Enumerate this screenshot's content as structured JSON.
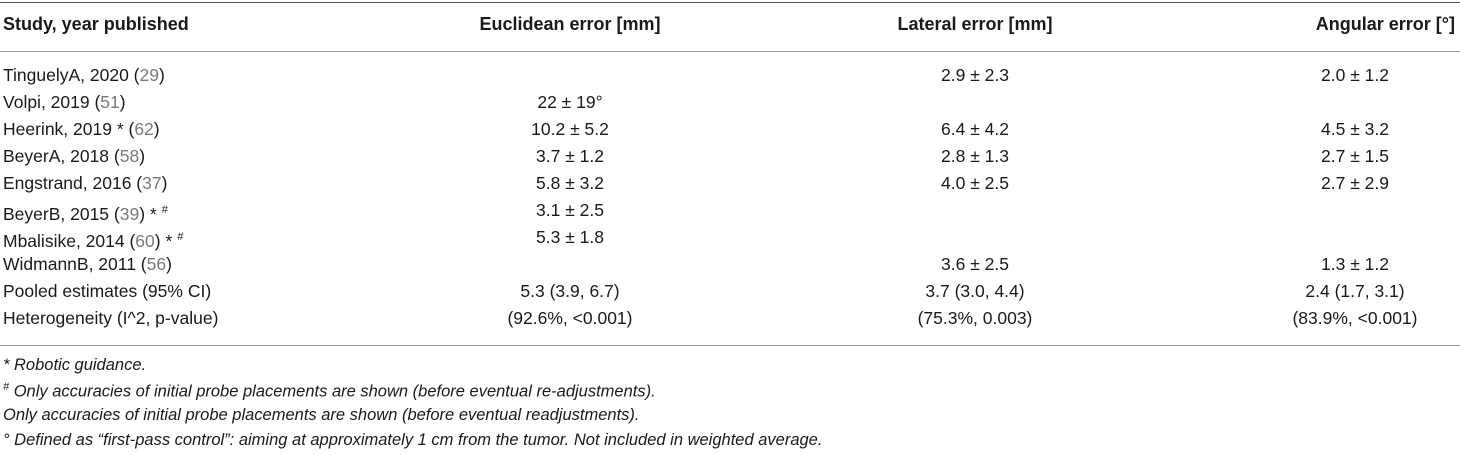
{
  "headers": {
    "study": "Study, year published",
    "euclidean": "Euclidean error [mm]",
    "lateral": "Lateral error [mm]",
    "angular": "Angular error [°]"
  },
  "rows": [
    {
      "study": "TinguelyA, 2020 (",
      "ref": "29",
      "suffix": ")",
      "euclidean": "",
      "lateral": "2.9 ± 2.3",
      "angular": "2.0 ± 1.2"
    },
    {
      "study": "Volpi, 2019 (",
      "ref": "51",
      "suffix": ")",
      "euclidean": "22 ± 19°",
      "lateral": "",
      "angular": ""
    },
    {
      "study": "Heerink, 2019 * (",
      "ref": "62",
      "suffix": ")",
      "euclidean": "10.2 ± 5.2",
      "lateral": "6.4 ± 4.2",
      "angular": "4.5 ± 3.2"
    },
    {
      "study": "BeyerA, 2018 (",
      "ref": "58",
      "suffix": ")",
      "euclidean": "3.7 ± 1.2",
      "lateral": "2.8 ± 1.3",
      "angular": "2.7 ± 1.5"
    },
    {
      "study": "Engstrand, 2016 (",
      "ref": "37",
      "suffix": ")",
      "euclidean": "5.8 ± 3.2",
      "lateral": "4.0 ± 2.5",
      "angular": "2.7 ± 2.9"
    },
    {
      "study": "BeyerB, 2015 (",
      "ref": "39",
      "suffix": ") * ",
      "sup": "#",
      "euclidean": "3.1 ± 2.5",
      "lateral": "",
      "angular": ""
    },
    {
      "study": "Mbalisike, 2014 (",
      "ref": "60",
      "suffix": ") * ",
      "sup": "#",
      "euclidean": "5.3 ± 1.8",
      "lateral": "",
      "angular": ""
    },
    {
      "study": "WidmannB, 2011 (",
      "ref": "56",
      "suffix": ")",
      "euclidean": "",
      "lateral": "3.6 ± 2.5",
      "angular": "1.3 ± 1.2"
    },
    {
      "study": "Pooled estimates (95% CI)",
      "ref": "",
      "suffix": "",
      "euclidean": "5.3 (3.9, 6.7)",
      "lateral": "3.7 (3.0, 4.4)",
      "angular": "2.4 (1.7, 3.1)"
    },
    {
      "study": "Heterogeneity (I^2, p-value)",
      "ref": "",
      "suffix": "",
      "euclidean": "(92.6%, <0.001)",
      "lateral": "(75.3%, 0.003)",
      "angular": "(83.9%, <0.001)"
    }
  ],
  "footnotes": {
    "robotic": "* Robotic guidance.",
    "hash_mark": "#",
    "initial": " Only accuracies of initial probe placements are shown (before eventual re-adjustments).",
    "initial_plain": "Only accuracies of initial probe placements are shown (before eventual readjustments).",
    "first_pass": "° Defined as “first-pass control”: aiming at approximately 1 cm from the tumor. Not included in weighted average."
  }
}
